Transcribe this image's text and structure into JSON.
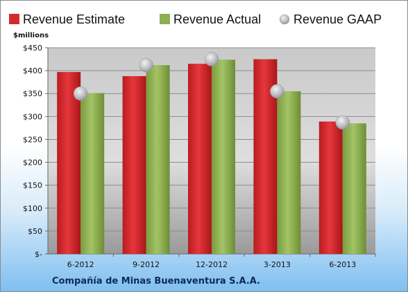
{
  "company": "Compañía de Minas Buenaventura S.A.A.",
  "chart_data": {
    "type": "bar",
    "unit_label": "$millions",
    "categories": [
      "6-2012",
      "9-2012",
      "12-2012",
      "3-2013",
      "6-2013"
    ],
    "ylim": [
      0,
      450
    ],
    "yticks": [
      0,
      50,
      100,
      150,
      200,
      250,
      300,
      350,
      400,
      450
    ],
    "ytick_labels": [
      "$-",
      "$50",
      "$100",
      "$150",
      "$200",
      "$250",
      "$300",
      "$350",
      "$400",
      "$450"
    ],
    "grid": true,
    "legend_position": "top",
    "series": [
      {
        "name": "Revenue Estimate",
        "kind": "bar",
        "color": "#d42a2e",
        "values": [
          397,
          388,
          415,
          425,
          289
        ]
      },
      {
        "name": "Revenue Actual",
        "kind": "bar",
        "color": "#8db050",
        "values": [
          351,
          412,
          424,
          355,
          285
        ]
      },
      {
        "name": "Revenue GAAP",
        "kind": "marker",
        "color": "#b8b8bc",
        "values": [
          350,
          412,
          425,
          355,
          287
        ]
      }
    ]
  }
}
